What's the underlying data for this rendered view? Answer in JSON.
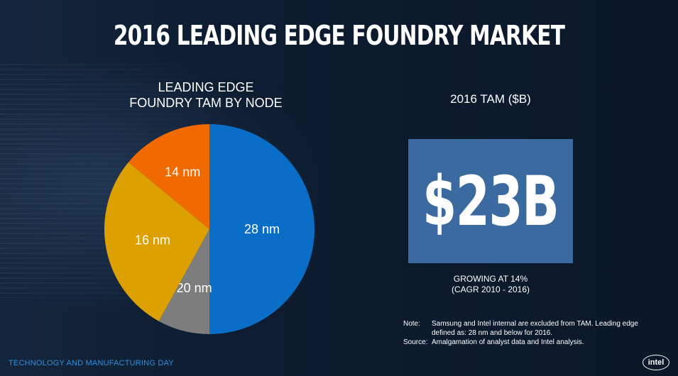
{
  "title": "2016 LEADING EDGE FOUNDRY MARKET",
  "chart_data": {
    "type": "pie",
    "title_lines": [
      "LEADING EDGE",
      "FOUNDRY TAM BY NODE"
    ],
    "slices": [
      {
        "label": "28 nm",
        "value": 50,
        "color": "#0a6ec8"
      },
      {
        "label": "20 nm",
        "value": 8,
        "color": "#7d7d7d"
      },
      {
        "label": "16 nm",
        "value": 28,
        "color": "#dca000"
      },
      {
        "label": "14 nm",
        "value": 14,
        "color": "#f06a00"
      }
    ]
  },
  "tam": {
    "title": "2016 TAM ($B)",
    "value": "$23B",
    "growth_line1": "GROWING AT 14%",
    "growth_line2": "(CAGR 2010 - 2016)"
  },
  "notes": {
    "note_label": "Note:",
    "note_text": "Samsung and Intel internal are excluded from TAM. Leading edge defined as:  28 nm and below for 2016.",
    "source_label": "Source:",
    "source_text": "Amalgamation of analyst data and Intel analysis."
  },
  "footer": "TECHNOLOGY AND MANUFACTURING DAY",
  "logo": "intel"
}
